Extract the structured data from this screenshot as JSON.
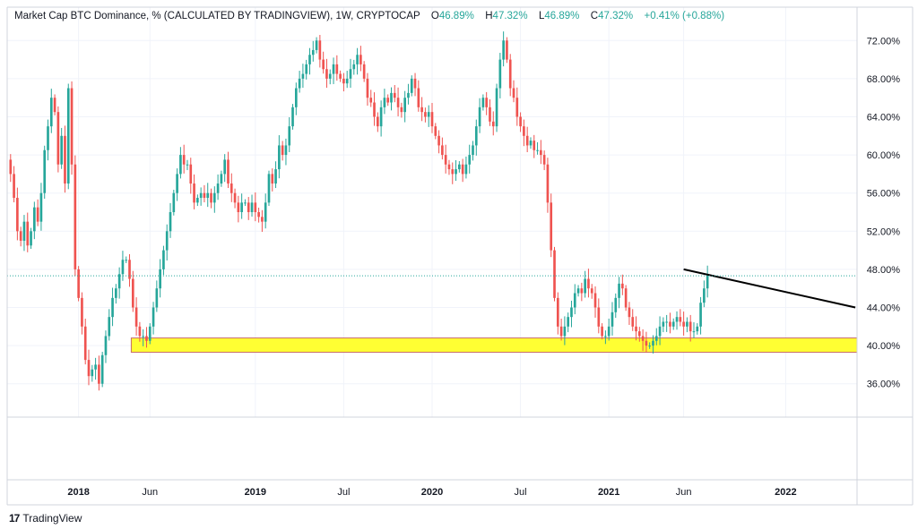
{
  "header": {
    "symbol": "Market Cap BTC Dominance, % (CALCULATED BY TRADINGVIEW), 1W, CRYPTOCAP",
    "open_label": "O",
    "open_value": "46.89%",
    "high_label": "H",
    "high_value": "47.32%",
    "low_label": "L",
    "low_value": "46.89%",
    "close_label": "C",
    "close_value": "47.32%",
    "change": "+0.41% (+0.88%)"
  },
  "brand": {
    "logo": "17",
    "name": "TradingView"
  },
  "colors": {
    "up": "#26a69a",
    "down": "#ef5350",
    "support_zone": "#ffff33",
    "support_border": "#c46a6a",
    "trendline": "#000000",
    "grid": "#f0f3fa",
    "axis_text": "#131722",
    "last_price_line": "#26a69a"
  },
  "chart_data": {
    "type": "candlestick",
    "title": "Market Cap BTC Dominance, % (CALCULATED BY TRADINGVIEW), 1W, CRYPTOCAP",
    "ylim": [
      32.5,
      75.5
    ],
    "y_ticks": [
      "36.00%",
      "40.00%",
      "44.00%",
      "48.00%",
      "52.00%",
      "56.00%",
      "60.00%",
      "64.00%",
      "68.00%",
      "72.00%"
    ],
    "y_tick_values": [
      36,
      40,
      44,
      48,
      52,
      56,
      60,
      64,
      68,
      72
    ],
    "x_ticks": [
      {
        "label": "2018",
        "week": 21
      },
      {
        "label": "Jun",
        "week": 42
      },
      {
        "label": "2019",
        "week": 73
      },
      {
        "label": "Jul",
        "week": 99
      },
      {
        "label": "2020",
        "week": 125
      },
      {
        "label": "Jul",
        "week": 151
      },
      {
        "label": "2021",
        "week": 177
      },
      {
        "label": "Jun",
        "week": 199
      },
      {
        "label": "2022",
        "week": 229
      }
    ],
    "x_range": [
      0,
      250
    ],
    "last_value": 47.32,
    "closes": [
      59.5,
      58,
      55.5,
      52,
      51,
      53,
      50.5,
      52,
      54.5,
      53,
      56,
      60.5,
      63,
      66,
      64.5,
      59,
      62,
      57,
      67,
      59,
      48,
      45,
      42,
      38.5,
      36.8,
      37.5,
      38,
      36,
      39,
      41,
      43,
      45,
      46,
      47.5,
      49,
      49,
      47,
      44,
      42,
      41,
      41,
      40.5,
      42,
      44,
      46,
      48,
      50,
      52,
      54,
      56,
      58,
      60,
      59,
      59,
      57,
      55,
      55.5,
      56,
      55.5,
      56,
      55,
      56,
      57,
      58,
      59.5,
      57,
      56,
      55,
      54,
      55,
      55,
      54,
      55,
      54,
      53.5,
      53,
      55,
      58,
      57,
      58.5,
      61,
      60,
      61,
      63,
      65,
      67,
      68,
      68.5,
      69.5,
      70.5,
      71,
      72,
      70,
      69,
      68,
      68.5,
      69.5,
      68.5,
      68,
      67.5,
      68,
      69,
      69.5,
      70.5,
      69.5,
      68,
      66,
      65.5,
      64,
      63,
      65,
      66,
      65.5,
      66.5,
      66,
      65,
      64.5,
      66,
      66.5,
      68,
      67,
      65,
      64.5,
      64,
      64.5,
      63,
      62,
      61,
      60,
      59,
      58.5,
      58,
      58.5,
      59,
      58,
      59,
      60,
      61,
      63,
      65,
      66,
      65,
      63.5,
      63,
      67,
      70,
      72,
      70,
      67,
      66,
      64,
      63,
      62,
      61,
      61.5,
      60.5,
      60.5,
      60,
      59,
      55,
      50,
      45,
      42,
      41,
      42,
      43,
      44,
      45.5,
      46,
      45.5,
      47,
      46,
      45.5,
      44,
      42,
      41,
      41,
      42,
      43.5,
      45,
      46.5,
      46,
      44,
      43,
      42,
      41.5,
      41,
      40.5,
      40,
      40,
      40.5,
      41,
      42,
      42.5,
      42.5,
      42,
      42.5,
      43,
      42.5,
      42,
      42.5,
      41.5,
      41.5,
      42,
      44.5,
      46,
      47.32
    ]
  }
}
